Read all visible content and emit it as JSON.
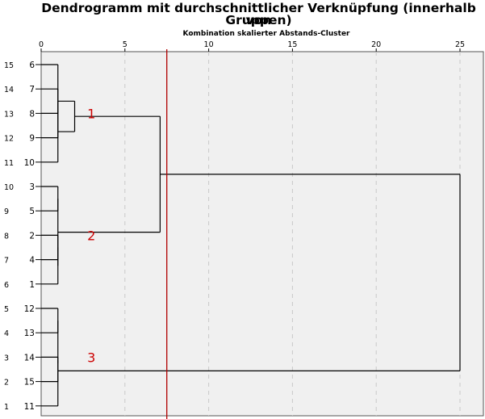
{
  "title_line1": "Dendrogramm mit durchschnittlicher Verknüpfung (innerhalb von",
  "title_line2": "Gruppen)",
  "subtitle": "Kombination skalierter Abstands-Cluster",
  "colors": {
    "plot_background": "#f0f0f0",
    "tree_lines": "#000000",
    "grid": "#c8c8c8",
    "cut_line": "#b00000",
    "annotation": "#cc0000"
  },
  "chart_data": {
    "type": "dendrogram",
    "orientation": "horizontal",
    "xlim": [
      0,
      25
    ],
    "x_ticks": [
      0,
      5,
      10,
      15,
      20,
      25
    ],
    "grid": "vertical dashed",
    "leaves": [
      {
        "pos": 15,
        "case": "6"
      },
      {
        "pos": 14,
        "case": "7"
      },
      {
        "pos": 13,
        "case": "8"
      },
      {
        "pos": 12,
        "case": "9"
      },
      {
        "pos": 11,
        "case": "10"
      },
      {
        "pos": 10,
        "case": "3"
      },
      {
        "pos": 9,
        "case": "5"
      },
      {
        "pos": 8,
        "case": "2"
      },
      {
        "pos": 7,
        "case": "4"
      },
      {
        "pos": 6,
        "case": "1"
      },
      {
        "pos": 5,
        "case": "12"
      },
      {
        "pos": 4,
        "case": "13"
      },
      {
        "pos": 3,
        "case": "14"
      },
      {
        "pos": 2,
        "case": "15"
      },
      {
        "pos": 1,
        "case": "11"
      }
    ],
    "merges": [
      {
        "left": "L0",
        "right": "L3",
        "height": 1,
        "id": "A"
      },
      {
        "left": "A",
        "right": "L4",
        "height": 1,
        "id": "B"
      },
      {
        "left": "L1",
        "right": "L2",
        "height": 1,
        "id": "C"
      },
      {
        "left": "C",
        "right": "B",
        "height": 2,
        "id": "D"
      },
      {
        "left": "L5",
        "right": "L6",
        "height": 1,
        "id": "E"
      },
      {
        "left": "L7",
        "right": "L8",
        "height": 1,
        "id": "F"
      },
      {
        "left": "F",
        "right": "L9",
        "height": 1,
        "id": "G"
      },
      {
        "left": "E",
        "right": "G",
        "height": 1,
        "id": "H"
      },
      {
        "left": "D",
        "right": "H",
        "height": 7.1,
        "id": "I"
      },
      {
        "left": "L10",
        "right": "L11",
        "height": 1,
        "id": "J"
      },
      {
        "left": "J",
        "right": "L14",
        "height": 1,
        "id": "K"
      },
      {
        "left": "K",
        "right": "L12",
        "height": 1,
        "id": "M"
      },
      {
        "left": "M",
        "right": "L13",
        "height": 1,
        "id": "N"
      },
      {
        "left": "I",
        "right": "N",
        "height": 25,
        "id": "ROOT"
      }
    ],
    "cut_line_x": 7.5,
    "cluster_annotations": [
      {
        "label": "1",
        "x": 3,
        "leaf": "8"
      },
      {
        "label": "2",
        "x": 3,
        "leaf": "2"
      },
      {
        "label": "3",
        "x": 3,
        "leaf": "14"
      }
    ]
  }
}
